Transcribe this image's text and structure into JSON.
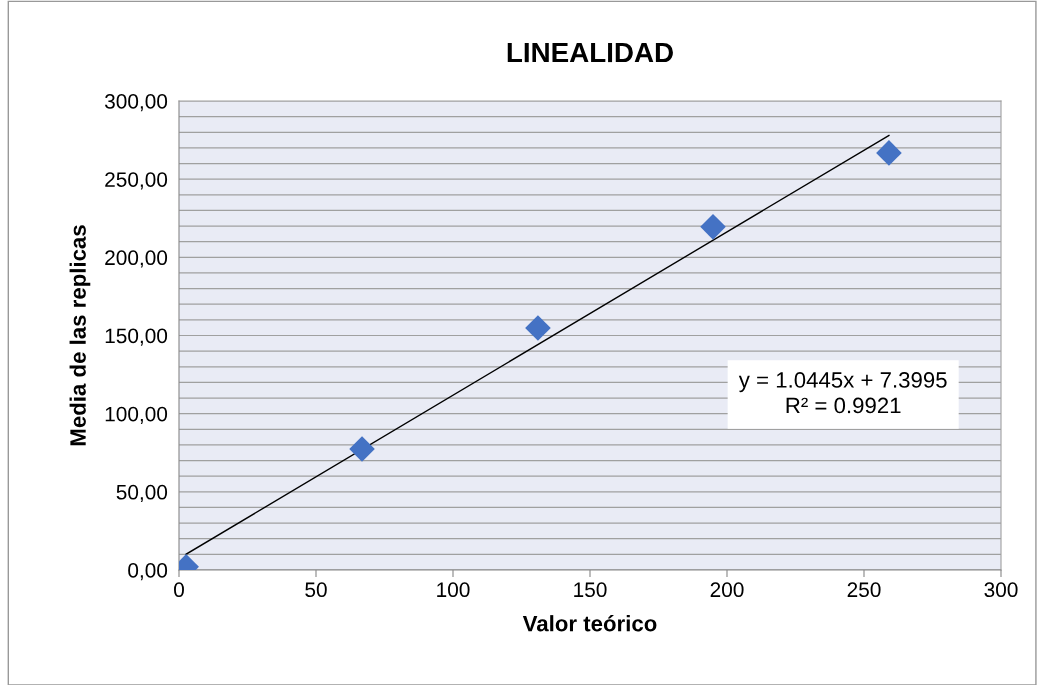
{
  "chart_data": {
    "type": "scatter",
    "title": "LINEALIDAD",
    "xlabel": "Valor teórico",
    "ylabel": "Media de las replicas",
    "marker": "diamond",
    "grid": "y",
    "legend": false,
    "series": [
      {
        "color": "#4472c4",
        "x": [
          2.6,
          66.8,
          131,
          194.9,
          259.1
        ],
        "values": [
          2,
          77.4,
          154.8,
          219.5,
          266.8
        ]
      },
      {
        "type": "line",
        "color": "#000000",
        "marker": "none",
        "line_style": "solid",
        "x": [
          2.6,
          259.1
        ],
        "values": [
          10.1,
          278
        ]
      }
    ],
    "xlim": [
      0,
      300
    ],
    "xticks": [
      0,
      50,
      100,
      150,
      200,
      250,
      300
    ],
    "ylim": [
      0,
      300
    ],
    "yticks": [
      {
        "value": 0,
        "label": "0,00"
      },
      {
        "value": 10,
        "label": null
      },
      {
        "value": 20,
        "label": null
      },
      {
        "value": 30,
        "label": null
      },
      {
        "value": 40,
        "label": null
      },
      {
        "value": 50,
        "label": "50,00"
      },
      {
        "value": 60,
        "label": null
      },
      {
        "value": 70,
        "label": null
      },
      {
        "value": 80,
        "label": null
      },
      {
        "value": 90,
        "label": null
      },
      {
        "value": 100,
        "label": "100,00"
      },
      {
        "value": 110,
        "label": null
      },
      {
        "value": 120,
        "label": null
      },
      {
        "value": 130,
        "label": null
      },
      {
        "value": 140,
        "label": null
      },
      {
        "value": 150,
        "label": "150,00"
      },
      {
        "value": 160,
        "label": null
      },
      {
        "value": 170,
        "label": null
      },
      {
        "value": 180,
        "label": null
      },
      {
        "value": 190,
        "label": null
      },
      {
        "value": 200,
        "label": "200,00"
      },
      {
        "value": 210,
        "label": null
      },
      {
        "value": 220,
        "label": null
      },
      {
        "value": 230,
        "label": null
      },
      {
        "value": 240,
        "label": null
      },
      {
        "value": 250,
        "label": "250,00"
      },
      {
        "value": 260,
        "label": null
      },
      {
        "value": 270,
        "label": null
      },
      {
        "value": 280,
        "label": null
      },
      {
        "value": 290,
        "label": null
      },
      {
        "value": 300,
        "label": "300,00"
      }
    ],
    "annotations": [
      "y = 1.0445x + 7.3995\nR² = 0.9921"
    ]
  }
}
